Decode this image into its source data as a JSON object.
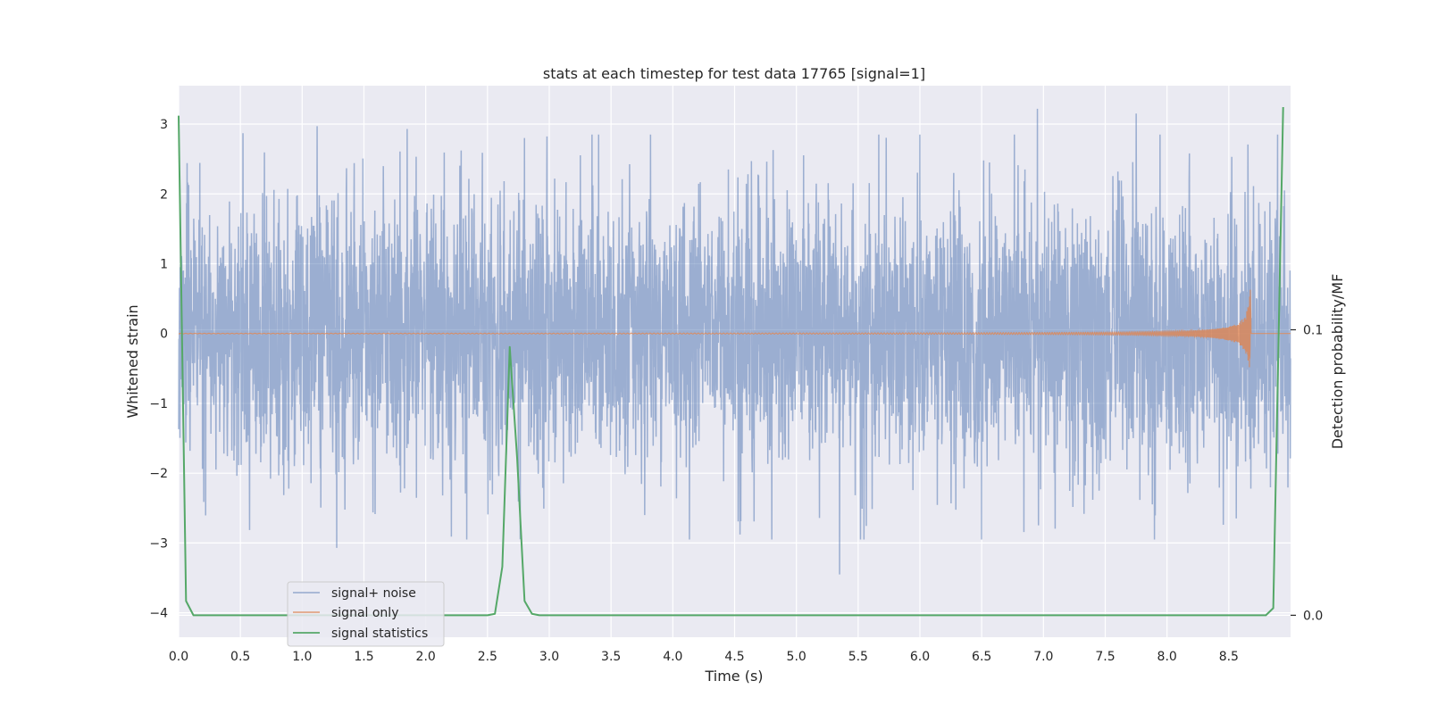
{
  "chart_data": {
    "type": "line",
    "title": "stats at each timestep for test data 17765 [signal=1]",
    "xlabel": "Time (s)",
    "ylabel": "Whitened strain",
    "ylabel_right": "Detection probability/MF",
    "xlim": [
      0,
      9.0
    ],
    "ylim": [
      -4.35,
      3.55
    ],
    "ylim_right": [
      -0.0077,
      0.1855
    ],
    "x_ticks": [
      0.0,
      0.5,
      1.0,
      1.5,
      2.0,
      2.5,
      3.0,
      3.5,
      4.0,
      4.5,
      5.0,
      5.5,
      6.0,
      6.5,
      7.0,
      7.5,
      8.0,
      8.5
    ],
    "x_tick_labels": [
      "0.0",
      "0.5",
      "1.0",
      "1.5",
      "2.0",
      "2.5",
      "3.0",
      "3.5",
      "4.0",
      "4.5",
      "5.0",
      "5.5",
      "6.0",
      "6.5",
      "7.0",
      "7.5",
      "8.0",
      "8.5"
    ],
    "y_ticks": [
      3,
      2,
      1,
      0,
      -1,
      -2,
      -3,
      -4
    ],
    "y_tick_labels": [
      "3",
      "2",
      "1",
      "0",
      "−1",
      "−2",
      "−3",
      "−4"
    ],
    "y_ticks_right": [
      0.1,
      0.0
    ],
    "y_tick_labels_right": [
      "0.1",
      "0.0"
    ],
    "grid": true,
    "legend_position": "bottom-left",
    "series": [
      {
        "name": "signal+ noise",
        "color": "#4c72b0",
        "axis": "left",
        "x_range": [
          0,
          9.0
        ],
        "peak_values": [
          {
            "x": 0.52,
            "y": 2.87
          },
          {
            "x": 1.12,
            "y": 2.97
          },
          {
            "x": 1.28,
            "y": -3.07
          },
          {
            "x": 1.85,
            "y": 2.93
          },
          {
            "x": 2.8,
            "y": 2.8
          },
          {
            "x": 4.45,
            "y": 2.35
          },
          {
            "x": 5.35,
            "y": -3.45
          },
          {
            "x": 6.95,
            "y": 3.22
          },
          {
            "x": 7.75,
            "y": 3.15
          },
          {
            "x": 8.95,
            "y": 2.05
          }
        ]
      },
      {
        "name": "signal only",
        "color": "#dd8452",
        "axis": "left",
        "x_range": [
          0,
          9.0
        ],
        "end_time": 8.68,
        "peak_amplitude": 0.8
      },
      {
        "name": "signal statistics",
        "color": "#55a868",
        "axis": "right",
        "x": [
          0.0,
          0.06,
          0.12,
          2.5,
          2.56,
          2.62,
          2.68,
          2.74,
          2.8,
          2.86,
          2.92,
          8.8,
          8.86,
          8.94
        ],
        "values": [
          0.175,
          0.005,
          0.0,
          0.0,
          0.0005,
          0.017,
          0.094,
          0.055,
          0.005,
          0.0005,
          0.0,
          0.0,
          0.0025,
          0.178
        ]
      }
    ]
  }
}
